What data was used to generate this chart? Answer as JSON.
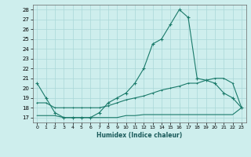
{
  "xlabel": "Humidex (Indice chaleur)",
  "background_color": "#ceeeed",
  "grid_color": "#aad8d8",
  "line_color": "#1a7a6a",
  "xlim": [
    -0.5,
    23.5
  ],
  "ylim": [
    16.5,
    28.5
  ],
  "xticks": [
    0,
    1,
    2,
    3,
    4,
    5,
    6,
    7,
    8,
    9,
    10,
    11,
    12,
    13,
    14,
    15,
    16,
    17,
    18,
    19,
    20,
    21,
    22,
    23
  ],
  "yticks": [
    17,
    18,
    19,
    20,
    21,
    22,
    23,
    24,
    25,
    26,
    27,
    28
  ],
  "series1_x": [
    0,
    1,
    2,
    3,
    4,
    5,
    6,
    7,
    8,
    9,
    10,
    11,
    12,
    13,
    14,
    15,
    16,
    17,
    18,
    19,
    20,
    21,
    22,
    23
  ],
  "series1_y": [
    20.5,
    19.0,
    17.5,
    17.0,
    17.0,
    17.0,
    17.0,
    17.5,
    18.5,
    19.0,
    19.5,
    20.5,
    22.0,
    24.5,
    25.0,
    26.5,
    28.0,
    27.2,
    21.0,
    20.8,
    20.5,
    19.5,
    19.0,
    18.0
  ],
  "series2_x": [
    0,
    1,
    2,
    3,
    4,
    5,
    6,
    7,
    8,
    9,
    10,
    11,
    12,
    13,
    14,
    15,
    16,
    17,
    18,
    19,
    20,
    21,
    22,
    23
  ],
  "series2_y": [
    18.5,
    18.5,
    18.0,
    18.0,
    18.0,
    18.0,
    18.0,
    18.0,
    18.2,
    18.5,
    18.8,
    19.0,
    19.2,
    19.5,
    19.8,
    20.0,
    20.2,
    20.5,
    20.5,
    20.8,
    21.0,
    21.0,
    20.5,
    18.0
  ],
  "series3_x": [
    0,
    1,
    2,
    3,
    4,
    5,
    6,
    7,
    8,
    9,
    10,
    11,
    12,
    13,
    14,
    15,
    16,
    17,
    18,
    19,
    20,
    21,
    22,
    23
  ],
  "series3_y": [
    17.2,
    17.2,
    17.2,
    17.0,
    17.0,
    17.0,
    17.0,
    17.0,
    17.0,
    17.0,
    17.2,
    17.2,
    17.3,
    17.3,
    17.3,
    17.3,
    17.3,
    17.3,
    17.3,
    17.3,
    17.3,
    17.3,
    17.3,
    18.0
  ]
}
